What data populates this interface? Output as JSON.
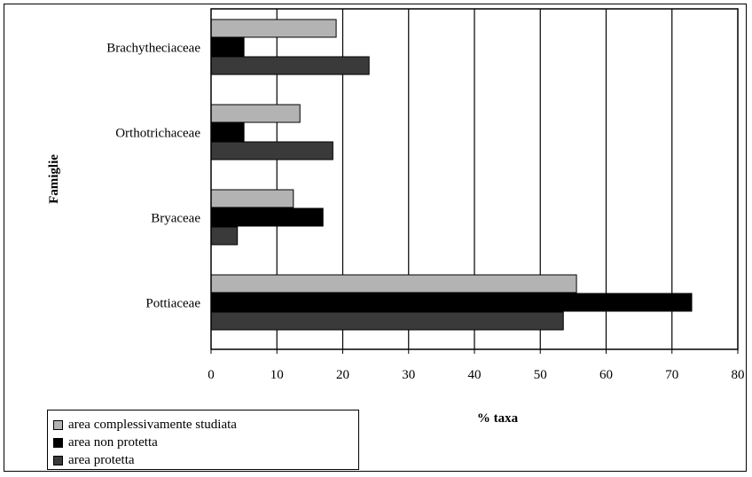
{
  "chart_data": {
    "type": "bar",
    "orientation": "horizontal",
    "categories": [
      "Brachytheciaceae",
      "Orthotrichaceae",
      "Bryaceae",
      "Pottiaceae"
    ],
    "series": [
      {
        "name": "area complessivamente studiata",
        "color": "#b3b3b3",
        "values": [
          19,
          13.5,
          12.5,
          55.5
        ]
      },
      {
        "name": "area non protetta",
        "color": "#000000",
        "values": [
          5,
          5,
          17,
          73
        ]
      },
      {
        "name": "area protetta",
        "color": "#3a3a3a",
        "values": [
          24,
          18.5,
          4,
          53.5
        ]
      }
    ],
    "xlabel": "% taxa",
    "ylabel": "Famiglie",
    "xlim": [
      0,
      80
    ],
    "xticks": [
      0,
      10,
      20,
      30,
      40,
      50,
      60,
      70,
      80
    ],
    "grid": true,
    "legend_position": "bottom-left"
  }
}
